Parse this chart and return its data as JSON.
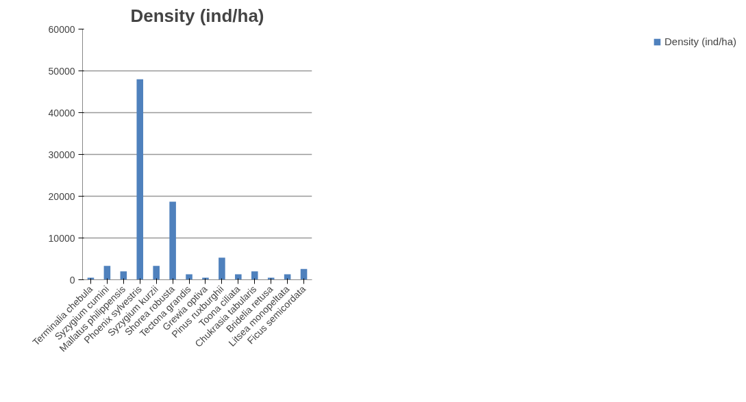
{
  "chart_data": {
    "type": "bar",
    "title": "Density (ind/ha)",
    "categories": [
      "Terminalia chebula",
      "Syzygium cumini",
      "Mallatus philippensis",
      "Phoenix sylvestris",
      "Syzygium kurzii",
      "Shorea robusta",
      "Tectona grandis",
      "Grewia optiva",
      "Pinus ruxburghii",
      "Toona ciliata",
      "Chukrasia tabularis",
      "Bridelia retusa",
      "Litsea monopeltata",
      "Ficus semicordata"
    ],
    "series": [
      {
        "name": "Density (ind/ha)",
        "color": "#4f81bd",
        "values": [
          500,
          3300,
          2000,
          48000,
          3300,
          18700,
          1300,
          500,
          5300,
          1300,
          2000,
          500,
          1300,
          2600
        ]
      }
    ],
    "ylim": [
      0,
      60000
    ],
    "yticks": [
      0,
      10000,
      20000,
      30000,
      40000,
      50000,
      60000
    ],
    "grid": "y",
    "legend": "right"
  }
}
